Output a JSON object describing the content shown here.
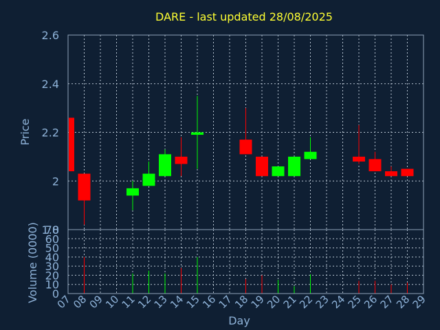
{
  "chart_data": {
    "type": "candlestick",
    "title": "DARE - last updated 28/08/2025",
    "xlabel": "Day",
    "ylabel": "Price",
    "volume_label": "Volume (0000)",
    "price_ylim": [
      1.8,
      2.6
    ],
    "price_ticks": [
      1.8,
      2,
      2.2,
      2.4,
      2.6
    ],
    "price_tick_labels": [
      "1.8",
      "2",
      "2.2",
      "2.4",
      "2.6"
    ],
    "volume_ylim": [
      0,
      70
    ],
    "volume_ticks": [
      0,
      10,
      20,
      30,
      40,
      50,
      60,
      70
    ],
    "x_ticks": [
      "07",
      "08",
      "09",
      "10",
      "11",
      "12",
      "13",
      "14",
      "15",
      "16",
      "17",
      "18",
      "19",
      "20",
      "21",
      "22",
      "23",
      "24",
      "25",
      "26",
      "27",
      "28",
      "29"
    ],
    "grid": true,
    "up_color": "#00ff00",
    "down_color": "#ff0000",
    "candles": [
      {
        "day": "07",
        "open": 2.26,
        "close": 2.04,
        "high": 2.26,
        "low": 2.04,
        "volume": 0
      },
      {
        "day": "08",
        "open": 2.03,
        "close": 1.92,
        "high": 2.03,
        "low": 1.82,
        "volume": 40
      },
      {
        "day": "11",
        "open": 1.94,
        "close": 1.97,
        "high": 2.0,
        "low": 1.88,
        "volume": 22
      },
      {
        "day": "12",
        "open": 1.98,
        "close": 2.03,
        "high": 2.08,
        "low": 1.98,
        "volume": 25
      },
      {
        "day": "13",
        "open": 2.02,
        "close": 2.11,
        "high": 2.13,
        "low": 2.02,
        "volume": 22
      },
      {
        "day": "14",
        "open": 2.1,
        "close": 2.07,
        "high": 2.18,
        "low": 2.02,
        "volume": 28
      },
      {
        "day": "15",
        "open": 2.19,
        "close": 2.2,
        "high": 2.35,
        "low": 2.05,
        "volume": 40
      },
      {
        "day": "18",
        "open": 2.17,
        "close": 2.11,
        "high": 2.3,
        "low": 2.11,
        "volume": 16
      },
      {
        "day": "19",
        "open": 2.1,
        "close": 2.02,
        "high": 2.1,
        "low": 2.02,
        "volume": 20
      },
      {
        "day": "20",
        "open": 2.02,
        "close": 2.06,
        "high": 2.06,
        "low": 2.02,
        "volume": 15
      },
      {
        "day": "21",
        "open": 2.02,
        "close": 2.1,
        "high": 2.1,
        "low": 2.02,
        "volume": 8
      },
      {
        "day": "22",
        "open": 2.09,
        "close": 2.12,
        "high": 2.18,
        "low": 2.09,
        "volume": 21
      },
      {
        "day": "25",
        "open": 2.1,
        "close": 2.08,
        "high": 2.23,
        "low": 2.07,
        "volume": 14
      },
      {
        "day": "26",
        "open": 2.09,
        "close": 2.04,
        "high": 2.12,
        "low": 2.04,
        "volume": 14
      },
      {
        "day": "27",
        "open": 2.04,
        "close": 2.02,
        "high": 2.06,
        "low": 2.02,
        "volume": 10
      },
      {
        "day": "28",
        "open": 2.05,
        "close": 2.02,
        "high": 2.05,
        "low": 2.02,
        "volume": 12
      }
    ]
  }
}
